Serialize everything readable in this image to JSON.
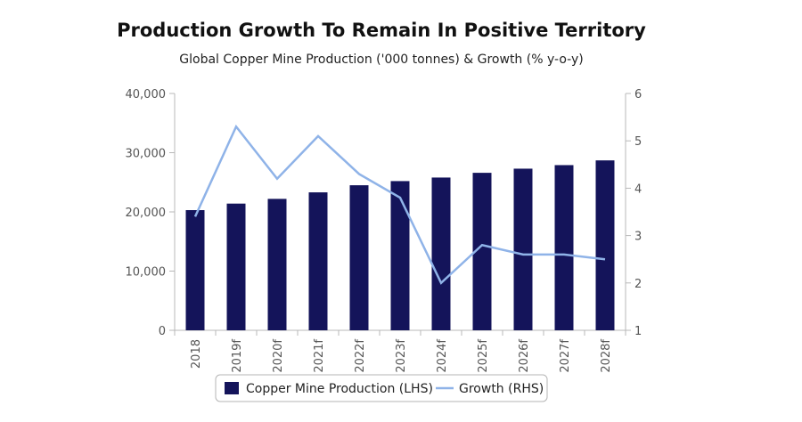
{
  "chart_data": {
    "type": "bar",
    "title": "Production Growth To Remain In Positive Territory",
    "subtitle": "Global Copper Mine Production ('000 tonnes) & Growth (% y-o-y)",
    "categories": [
      "2018",
      "2019f",
      "2020f",
      "2021f",
      "2022f",
      "2023f",
      "2024f",
      "2025f",
      "2026f",
      "2027f",
      "2028f"
    ],
    "series": [
      {
        "name": "Copper Mine Production (LHS)",
        "type": "bar",
        "axis": "left",
        "color": "#14145a",
        "values": [
          20300,
          21400,
          22200,
          23300,
          24500,
          25200,
          25800,
          26600,
          27300,
          27900,
          28700
        ]
      },
      {
        "name": "Growth (RHS)",
        "type": "line",
        "axis": "right",
        "color": "#8fb3e8",
        "values": [
          3.4,
          5.3,
          4.2,
          5.1,
          4.3,
          3.8,
          2.0,
          2.8,
          2.6,
          2.6,
          2.5
        ]
      }
    ],
    "y_left": {
      "min": 0,
      "max": 40000,
      "ticks": [
        "0",
        "10,000",
        "20,000",
        "30,000",
        "40,000"
      ]
    },
    "y_right": {
      "min": 1,
      "max": 6,
      "ticks": [
        "1",
        "2",
        "3",
        "4",
        "5",
        "6"
      ]
    },
    "grid": false,
    "legend": "bottom"
  }
}
